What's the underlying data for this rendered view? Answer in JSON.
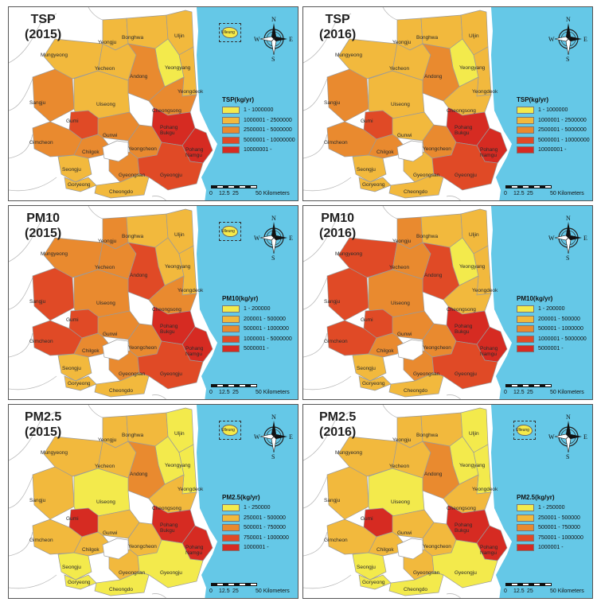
{
  "colors": {
    "class1": "#f3ea4c",
    "class2": "#f2b93d",
    "class3": "#e98a2f",
    "class4": "#e04a26",
    "class5": "#d62b22",
    "sea": "#65c8e7",
    "land_outside": "#ffffff",
    "border": "#9a9a9a"
  },
  "region_labels": [
    "Yeongju",
    "Bonghwa",
    "Uljin",
    "Mungyeong",
    "Yecheon",
    "Yeongyang",
    "Andong",
    "Sangju",
    "Uiseong",
    "Yeongdeok",
    "Cheongsong",
    "Gumi",
    "Gunwi",
    "Pohang Bukgu",
    "Pohang Namgu",
    "Gimcheon",
    "Chilgok",
    "Yeongcheon",
    "Seongju",
    "Gyeongsan",
    "Gyeongju",
    "Goryeong",
    "Cheongdo"
  ],
  "inset_label": "Ulleung",
  "compass": {
    "n": "N",
    "s": "S",
    "e": "E",
    "w": "W"
  },
  "scale": {
    "t0": "0",
    "t1": "12.5",
    "t2": "25",
    "t3": "50 Kilometers"
  },
  "panels": [
    {
      "title_line1": "TSP",
      "title_line2": "(2015)",
      "show_inset": true,
      "legend_title": "TSP(kg/yr)",
      "legend_items": [
        "1 - 1000000",
        "1000001 - 2500000",
        "2500001 - 5000000",
        "5000001 - 10000000",
        "10000001 -"
      ],
      "classes": [
        2,
        2,
        2,
        2,
        2,
        1,
        3,
        3,
        2,
        2,
        3,
        4,
        3,
        5,
        5,
        3,
        3,
        3,
        2,
        3,
        4,
        2,
        2
      ]
    },
    {
      "title_line1": "TSP",
      "title_line2": "(2016)",
      "show_inset": false,
      "legend_title": "TSP(kg/yr)",
      "legend_items": [
        "1 - 1000000",
        "1000001 - 2500000",
        "2500001 - 5000000",
        "5000001 - 10000000",
        "10000001 -"
      ],
      "classes": [
        2,
        2,
        2,
        2,
        2,
        1,
        3,
        3,
        2,
        2,
        2,
        4,
        2,
        5,
        5,
        3,
        3,
        3,
        2,
        2,
        4,
        2,
        2
      ]
    },
    {
      "title_line1": "PM10",
      "title_line2": "(2015)",
      "show_inset": true,
      "legend_title": "PM10(kg/yr)",
      "legend_items": [
        "1 - 200000",
        "200001 - 500000",
        "500001 - 1000000",
        "1000001 - 5000000",
        "5000001 -"
      ],
      "classes": [
        3,
        2,
        2,
        3,
        3,
        2,
        4,
        4,
        3,
        2,
        3,
        4,
        3,
        5,
        5,
        4,
        3,
        3,
        2,
        3,
        4,
        2,
        2
      ]
    },
    {
      "title_line1": "PM10",
      "title_line2": "(2016)",
      "show_inset": false,
      "legend_title": "PM10(kg/yr)",
      "legend_items": [
        "1 - 200000",
        "200001 - 500000",
        "500001 - 1000000",
        "1000001 - 5000000",
        "5000001 -"
      ],
      "classes": [
        3,
        2,
        2,
        4,
        3,
        1,
        4,
        4,
        3,
        2,
        2,
        4,
        3,
        5,
        5,
        4,
        3,
        3,
        2,
        3,
        4,
        2,
        2
      ]
    },
    {
      "title_line1": "PM2.5",
      "title_line2": "(2015)",
      "show_inset": true,
      "legend_title": "PM2.5(kg/yr)",
      "legend_items": [
        "1 - 250000",
        "250001 - 500000",
        "500001 - 750000",
        "750001 - 1000000",
        "1000001 -"
      ],
      "classes": [
        2,
        2,
        1,
        2,
        2,
        1,
        3,
        2,
        1,
        1,
        2,
        5,
        2,
        5,
        5,
        2,
        2,
        2,
        1,
        2,
        1,
        1,
        1
      ]
    },
    {
      "title_line1": "PM2.5",
      "title_line2": "(2016)",
      "show_inset": true,
      "legend_title": "PM2.5(kg/yr)",
      "legend_items": [
        "1 - 250000",
        "250001 - 500000",
        "500001 - 750000",
        "750001 - 1000000",
        "1000001 -"
      ],
      "classes": [
        2,
        2,
        1,
        2,
        2,
        1,
        3,
        2,
        1,
        1,
        2,
        5,
        2,
        5,
        5,
        2,
        2,
        2,
        1,
        2,
        1,
        1,
        1
      ]
    }
  ]
}
